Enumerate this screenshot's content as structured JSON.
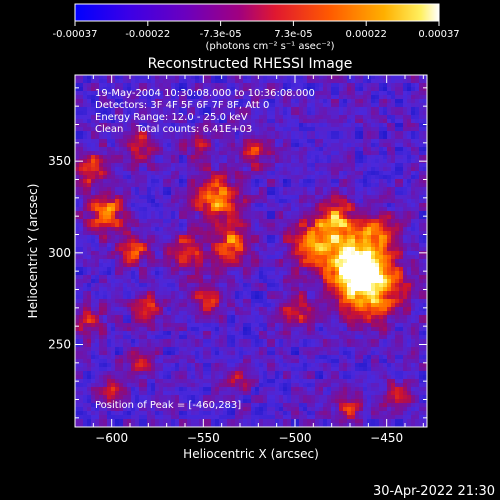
{
  "colorbar": {
    "ticks": [
      "-0.00037",
      "-0.00022",
      "-7.3e-05",
      "7.3e-05",
      "0.00022",
      "0.00037"
    ],
    "units_label": "(photons cm⁻² s⁻¹ asec⁻²)",
    "range": [
      -0.00037,
      0.00037
    ],
    "colors": [
      "#0000ff",
      "#4a00e0",
      "#7a00b0",
      "#b00060",
      "#ff3000",
      "#ff9000",
      "#ffe000",
      "#ffffff"
    ]
  },
  "annotations": {
    "line1": "19-May-2004 10:30:08.000 to 10:36:08.000",
    "line2": "Detectors: 3F 4F 5F 6F 7F 8F, Att 0",
    "line3": "Energy Range: 12.0 - 25.0 keV",
    "line4": "Clean    Total counts: 6.41E+03",
    "peak": "Position of Peak = [-460,283]"
  },
  "footer": {
    "timestamp": "30-Apr-2022 21:30"
  },
  "chart_data": {
    "type": "heatmap",
    "title": "Reconstructed RHESSI Image",
    "xlabel": "Heliocentric X (arcsec)",
    "ylabel": "Heliocentric Y (arcsec)",
    "xlim": [
      -620,
      -428
    ],
    "ylim": [
      205,
      397
    ],
    "xticks": [
      -600,
      -550,
      -500,
      -450
    ],
    "yticks": [
      250,
      300,
      350
    ],
    "peak": {
      "x": -460,
      "y": 283
    },
    "sources": [
      {
        "x": -460,
        "y": 283,
        "r": 18,
        "a": 1.0
      },
      {
        "x": -470,
        "y": 296,
        "r": 14,
        "a": 0.75
      },
      {
        "x": -492,
        "y": 305,
        "r": 12,
        "a": 0.65
      },
      {
        "x": -478,
        "y": 318,
        "r": 11,
        "a": 0.7
      },
      {
        "x": -455,
        "y": 312,
        "r": 10,
        "a": 0.55
      },
      {
        "x": -500,
        "y": 268,
        "r": 10,
        "a": 0.45
      },
      {
        "x": -542,
        "y": 330,
        "r": 12,
        "a": 0.75
      },
      {
        "x": -535,
        "y": 305,
        "r": 11,
        "a": 0.6
      },
      {
        "x": -560,
        "y": 300,
        "r": 10,
        "a": 0.55
      },
      {
        "x": -548,
        "y": 275,
        "r": 9,
        "a": 0.5
      },
      {
        "x": -603,
        "y": 322,
        "r": 10,
        "a": 0.7
      },
      {
        "x": -612,
        "y": 346,
        "r": 9,
        "a": 0.55
      },
      {
        "x": -585,
        "y": 358,
        "r": 9,
        "a": 0.45
      },
      {
        "x": -588,
        "y": 302,
        "r": 9,
        "a": 0.55
      },
      {
        "x": -580,
        "y": 270,
        "r": 9,
        "a": 0.45
      },
      {
        "x": -612,
        "y": 262,
        "r": 8,
        "a": 0.45
      },
      {
        "x": -600,
        "y": 226,
        "r": 8,
        "a": 0.4
      },
      {
        "x": -585,
        "y": 240,
        "r": 8,
        "a": 0.4
      },
      {
        "x": -523,
        "y": 355,
        "r": 9,
        "a": 0.45
      },
      {
        "x": -552,
        "y": 358,
        "r": 7,
        "a": 0.4
      },
      {
        "x": -470,
        "y": 215,
        "r": 8,
        "a": 0.4
      },
      {
        "x": -445,
        "y": 222,
        "r": 8,
        "a": 0.4
      },
      {
        "x": -530,
        "y": 230,
        "r": 7,
        "a": 0.35
      }
    ]
  }
}
